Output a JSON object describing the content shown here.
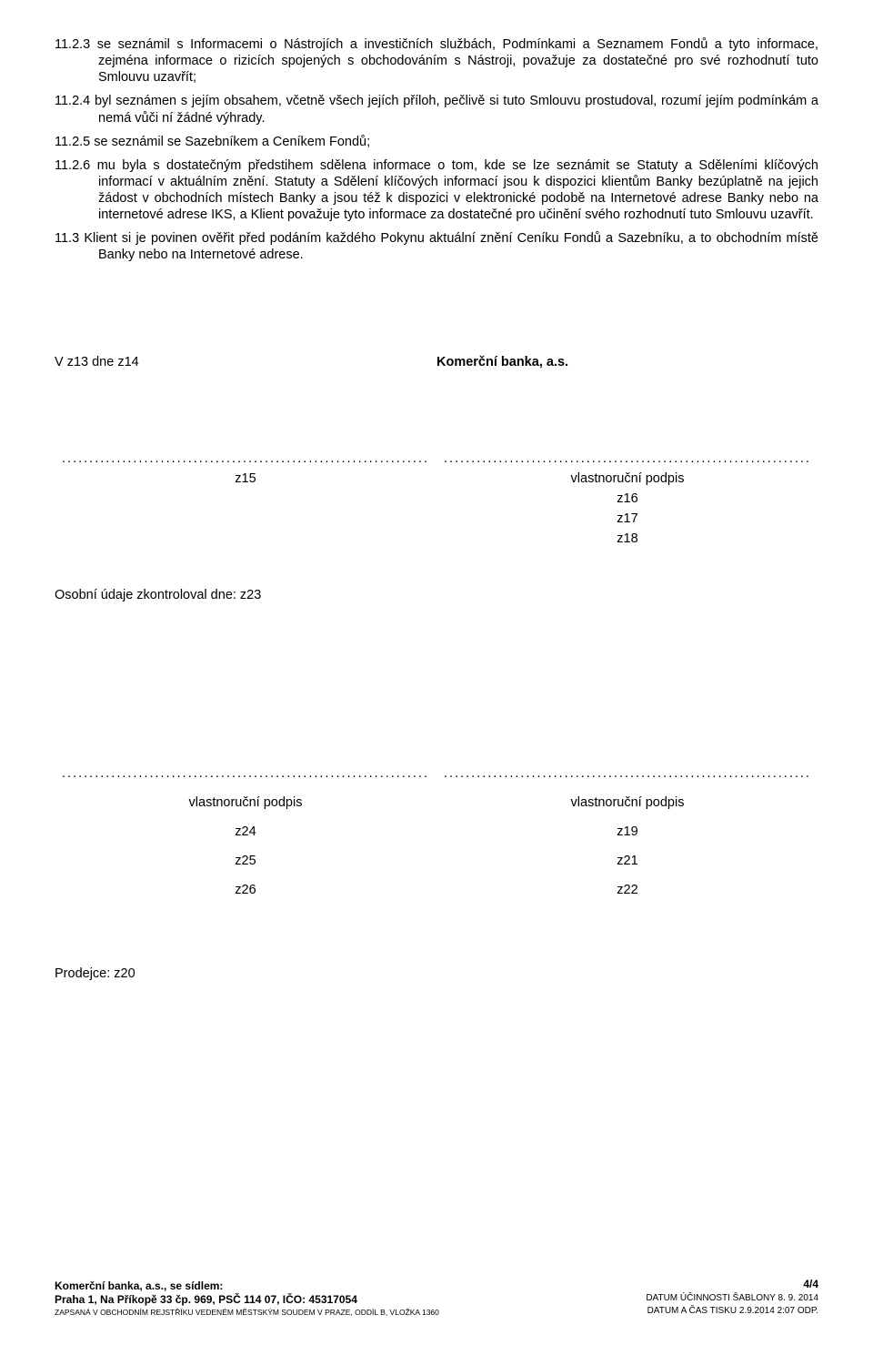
{
  "clauses": {
    "c1": "11.2.3 se seznámil s Informacemi o Nástrojích a investičních službách, Podmínkami a Seznamem Fondů a tyto informace, zejména informace o rizicích spojených s obchodováním s Nástroji, považuje za dostatečné pro své rozhodnutí tuto Smlouvu uzavřít;",
    "c2": "11.2.4 byl seznámen s jejím obsahem, včetně všech jejích příloh, pečlivě si tuto Smlouvu prostudoval, rozumí jejím podmínkám a nemá vůči ní žádné výhrady.",
    "c3": "11.2.5 se seznámil se Sazebníkem a Ceníkem Fondů;",
    "c4": "11.2.6 mu byla s dostatečným předstihem sdělena informace o tom, kde se lze seznámit se Statuty a Sděleními klíčových informací v aktuálním znění. Statuty a Sdělení klíčových informací jsou k dispozici klientům Banky bezúplatně na jejich žádost v obchodních místech Banky a jsou též k dispozici v elektronické podobě na Internetové adrese Banky nebo na internetové adrese IKS, a Klient považuje tyto informace za dostatečné pro učinění svého rozhodnutí tuto Smlouvu uzavřít.",
    "c5": "11.3 Klient si je povinen ověřit před podáním každého Pokynu aktuální znění Ceníku Fondů a Sazebníku, a to obchodním místě Banky nebo na Internetové adrese."
  },
  "location": {
    "left": "V z13 dne z14",
    "right": "Komerční banka, a.s."
  },
  "sig1": {
    "dots": "...................................................................",
    "left": {
      "line1": "z15"
    },
    "right": {
      "line1": "vlastnoruční podpis",
      "line2": "z16",
      "line3": "z17",
      "line4": "z18"
    }
  },
  "check": "Osobní údaje zkontroloval dne: z23",
  "sig2": {
    "dots": "...................................................................",
    "left": {
      "line1": "vlastnoruční podpis",
      "line2": "z24",
      "line3": "z25",
      "line4": "z26"
    },
    "right": {
      "line1": "vlastnoruční podpis",
      "line2": "z19",
      "line3": "z21",
      "line4": "z22"
    }
  },
  "seller": "Prodejce: z20",
  "footer": {
    "company": "Komerční banka, a.s., se sídlem:",
    "address": "Praha 1, Na Příkopě 33 čp. 969, PSČ 114 07, IČO: 45317054",
    "registry": "ZAPSANÁ V OBCHODNÍM REJSTŘÍKU VEDENÉM MĚSTSKÝM SOUDEM V PRAZE, ODDÍL B, VLOŽKA 1360",
    "page": "4/4",
    "template_date": "DATUM ÚČINNOSTI ŠABLONY 8. 9. 2014",
    "print_date": "DATUM A ČAS TISKU 2.9.2014 2:07 ODP."
  }
}
